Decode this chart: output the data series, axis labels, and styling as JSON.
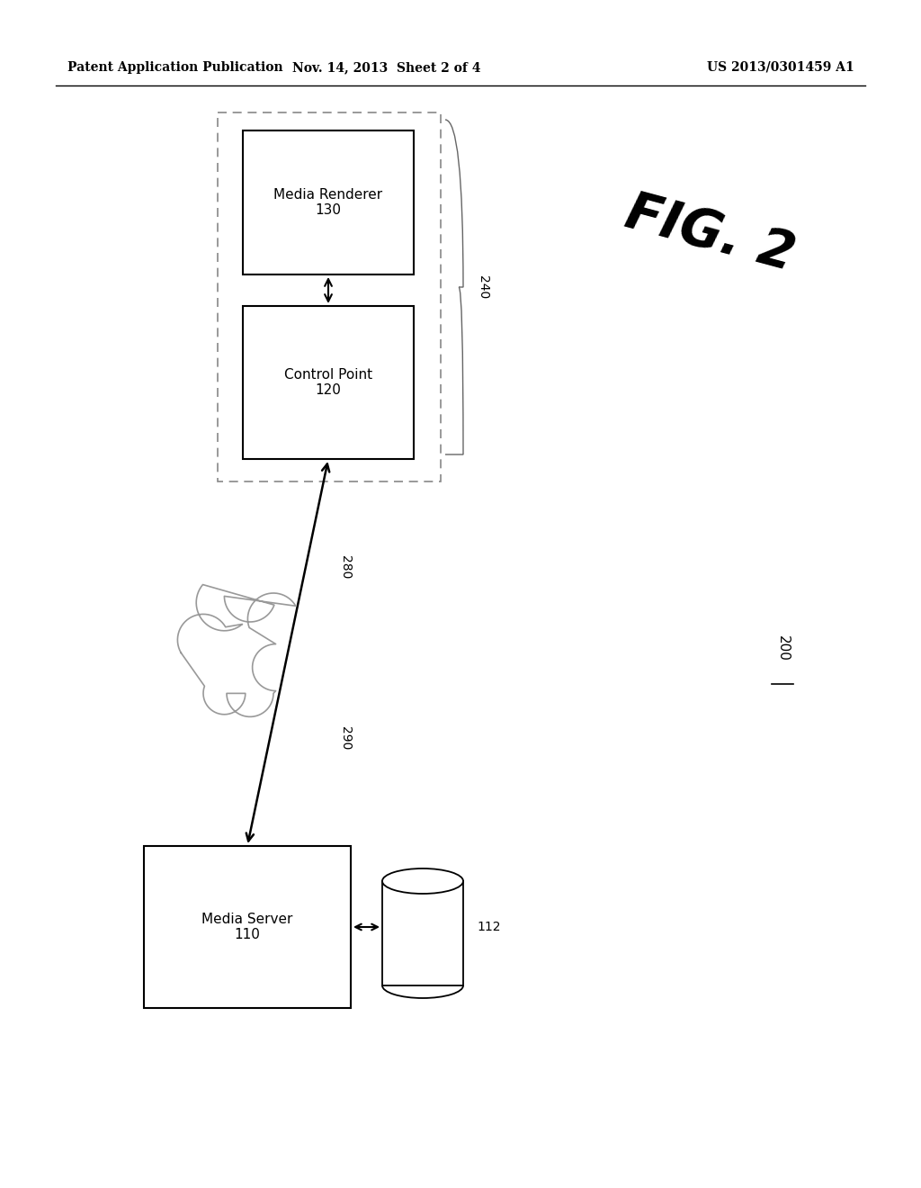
{
  "bg_color": "#ffffff",
  "header_left": "Patent Application Publication",
  "header_mid": "Nov. 14, 2013  Sheet 2 of 4",
  "header_right": "US 2013/0301459 A1",
  "fig_label": "FIG. 2",
  "diagram_label": "200",
  "media_renderer_label": "Media Renderer\n130",
  "control_point_label": "Control Point\n120",
  "media_server_label": "Media Server\n110",
  "db_label": "112",
  "label_240": "240",
  "label_280": "280",
  "label_290": "290"
}
